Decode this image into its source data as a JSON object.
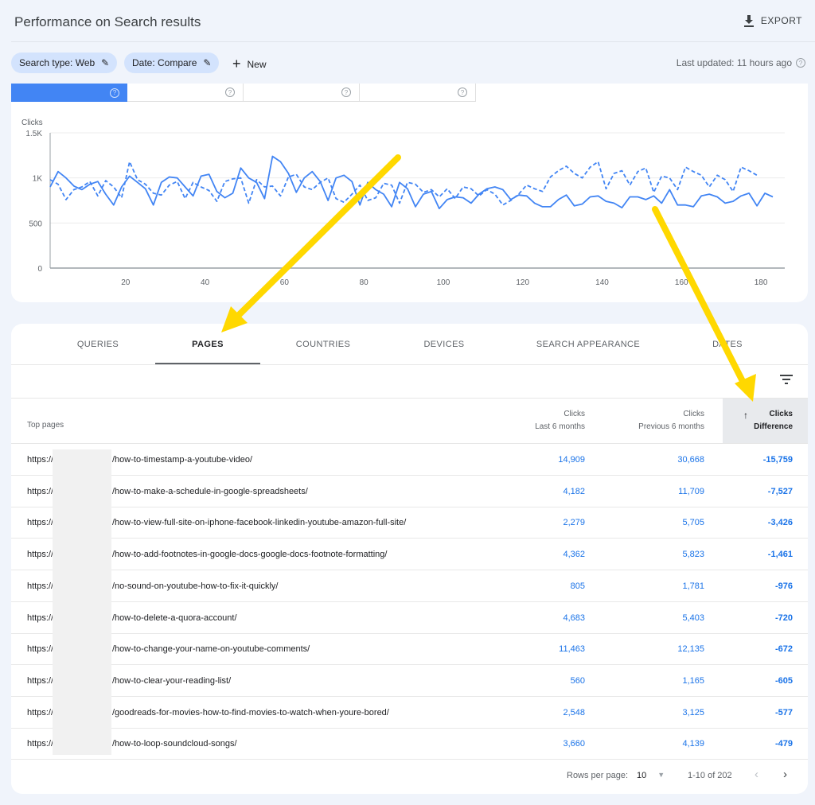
{
  "header": {
    "title": "Performance on Search results",
    "export_label": "EXPORT"
  },
  "filters": {
    "chips": [
      "Search type: Web",
      "Date: Compare"
    ],
    "new_label": "New",
    "last_updated": "Last updated: 11 hours ago"
  },
  "colors": {
    "accent": "#4285f4",
    "link": "#1a73e8",
    "annotation_arrow": "#ffd800"
  },
  "chart_data": {
    "type": "line",
    "ylabel": "Clicks",
    "ylim": [
      0,
      1500
    ],
    "yticks": [
      "0",
      "500",
      "1K",
      "1.5K"
    ],
    "ytick_values": [
      0,
      500,
      1000,
      1500
    ],
    "xticks": [
      20,
      40,
      60,
      80,
      100,
      120,
      140,
      160,
      180
    ],
    "xlim": [
      1,
      186
    ],
    "grid": true,
    "x_start": 1,
    "x_step": 2,
    "series": [
      {
        "style": "solid",
        "values": [
          900,
          1070,
          1000,
          910,
          870,
          930,
          960,
          820,
          700,
          900,
          1020,
          950,
          880,
          700,
          950,
          1010,
          1000,
          900,
          800,
          1020,
          1040,
          850,
          780,
          830,
          1110,
          1000,
          950,
          770,
          1240,
          1180,
          1050,
          840,
          1000,
          1070,
          960,
          750,
          1000,
          1030,
          960,
          700,
          950,
          870,
          820,
          680,
          950,
          880,
          680,
          820,
          850,
          660,
          760,
          790,
          780,
          720,
          820,
          880,
          900,
          870,
          760,
          810,
          800,
          720,
          680,
          680,
          760,
          810,
          690,
          710,
          790,
          800,
          740,
          720,
          670,
          790,
          790,
          760,
          800,
          720,
          870,
          700,
          700,
          680,
          800,
          820,
          790,
          720,
          740,
          800,
          830,
          690,
          830,
          790
        ]
      },
      {
        "style": "dashed",
        "values": [
          980,
          930,
          760,
          870,
          900,
          960,
          800,
          970,
          900,
          780,
          1180,
          980,
          930,
          830,
          810,
          920,
          960,
          770,
          950,
          900,
          860,
          740,
          960,
          990,
          1000,
          720,
          980,
          900,
          910,
          800,
          1010,
          1040,
          900,
          870,
          950,
          1000,
          770,
          730,
          820,
          920,
          750,
          780,
          940,
          920,
          720,
          950,
          930,
          840,
          870,
          790,
          880,
          770,
          900,
          880,
          800,
          870,
          820,
          700,
          750,
          820,
          920,
          880,
          850,
          1010,
          1080,
          1130,
          1050,
          1000,
          1120,
          1180,
          880,
          1050,
          1080,
          920,
          1070,
          1110,
          840,
          1020,
          1000,
          870,
          1120,
          1070,
          1030,
          900,
          1030,
          980,
          850,
          1120,
          1080,
          1030
        ]
      }
    ]
  },
  "tabs": [
    {
      "label": "QUERIES"
    },
    {
      "label": "PAGES",
      "active": true
    },
    {
      "label": "COUNTRIES"
    },
    {
      "label": "DEVICES"
    },
    {
      "label": "SEARCH APPEARANCE"
    },
    {
      "label": "DATES"
    }
  ],
  "table": {
    "header": {
      "pages": "Top pages",
      "c1a": "Clicks",
      "c1b": "Last 6 months",
      "c2a": "Clicks",
      "c2b": "Previous 6 months",
      "c3a": "Clicks",
      "c3b": "Difference"
    },
    "rows": [
      {
        "prefix": "https://",
        "path": "/how-to-timestamp-a-youtube-video/",
        "last": "14,909",
        "prev": "30,668",
        "diff": "-15,759"
      },
      {
        "prefix": "https://",
        "path": "/how-to-make-a-schedule-in-google-spreadsheets/",
        "last": "4,182",
        "prev": "11,709",
        "diff": "-7,527"
      },
      {
        "prefix": "https://",
        "path": "/how-to-view-full-site-on-iphone-facebook-linkedin-youtube-amazon-full-site/",
        "last": "2,279",
        "prev": "5,705",
        "diff": "-3,426"
      },
      {
        "prefix": "https://",
        "path": "/how-to-add-footnotes-in-google-docs-google-docs-footnote-formatting/",
        "last": "4,362",
        "prev": "5,823",
        "diff": "-1,461"
      },
      {
        "prefix": "https://",
        "path": "/no-sound-on-youtube-how-to-fix-it-quickly/",
        "last": "805",
        "prev": "1,781",
        "diff": "-976"
      },
      {
        "prefix": "https://",
        "path": "/how-to-delete-a-quora-account/",
        "last": "4,683",
        "prev": "5,403",
        "diff": "-720"
      },
      {
        "prefix": "https://",
        "path": "/how-to-change-your-name-on-youtube-comments/",
        "last": "11,463",
        "prev": "12,135",
        "diff": "-672"
      },
      {
        "prefix": "https://",
        "path": "/how-to-clear-your-reading-list/",
        "last": "560",
        "prev": "1,165",
        "diff": "-605"
      },
      {
        "prefix": "https://",
        "path": "/goodreads-for-movies-how-to-find-movies-to-watch-when-youre-bored/",
        "last": "2,548",
        "prev": "3,125",
        "diff": "-577"
      },
      {
        "prefix": "https://",
        "path": "/how-to-loop-soundcloud-songs/",
        "last": "3,660",
        "prev": "4,139",
        "diff": "-479"
      }
    ]
  },
  "footer": {
    "rows_label": "Rows per page:",
    "rows_value": "10",
    "range": "1-10 of 202"
  }
}
